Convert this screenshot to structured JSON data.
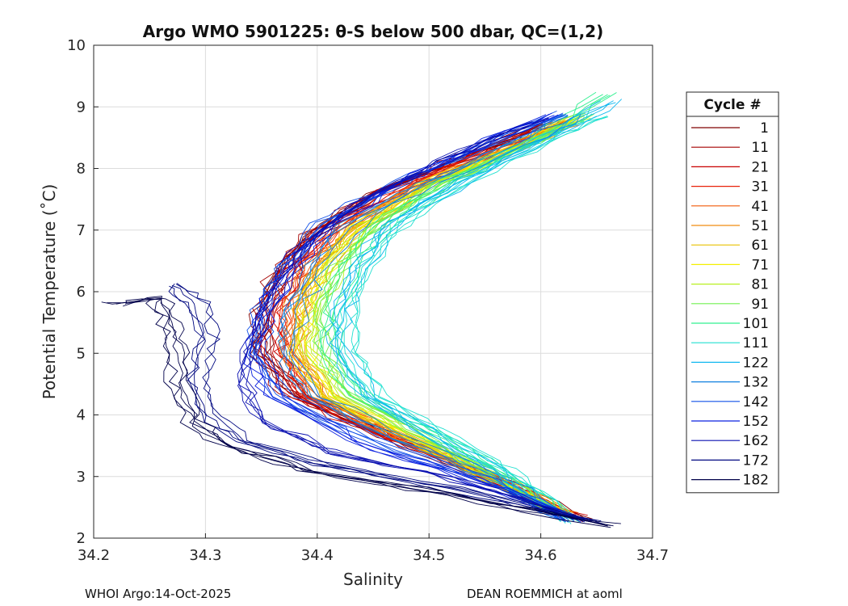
{
  "chart_data": {
    "type": "line",
    "title": "Argo WMO 5901225: θ-S below 500 dbar,  QC=(1,2)",
    "xlabel": "Salinity",
    "ylabel": "Potential Temperature (˚C)",
    "xlim": [
      34.2,
      34.7
    ],
    "ylim": [
      2,
      10
    ],
    "xticks": [
      "34.2",
      "34.3",
      "34.4",
      "34.5",
      "34.6",
      "34.7"
    ],
    "yticks": [
      "2",
      "3",
      "4",
      "5",
      "6",
      "7",
      "8",
      "9",
      "10"
    ],
    "grid": true,
    "legend": {
      "title": "Cycle #",
      "placement": "right",
      "entries": [
        {
          "label": "1",
          "color": "#800000"
        },
        {
          "label": "11",
          "color": "#a50000"
        },
        {
          "label": "21",
          "color": "#c80000"
        },
        {
          "label": "31",
          "color": "#e8220a"
        },
        {
          "label": "41",
          "color": "#f25a0a"
        },
        {
          "label": "51",
          "color": "#f08c10"
        },
        {
          "label": "61",
          "color": "#e8c000"
        },
        {
          "label": "71",
          "color": "#f5f000"
        },
        {
          "label": "81",
          "color": "#b8f020"
        },
        {
          "label": "91",
          "color": "#70f050"
        },
        {
          "label": "101",
          "color": "#30f090"
        },
        {
          "label": "111",
          "color": "#20e0d0"
        },
        {
          "label": "122",
          "color": "#10b8f0"
        },
        {
          "label": "132",
          "color": "#1080e0"
        },
        {
          "label": "142",
          "color": "#1050e8"
        },
        {
          "label": "152",
          "color": "#0a20e0"
        },
        {
          "label": "162",
          "color": "#0a10b0"
        },
        {
          "label": "172",
          "color": "#000880"
        },
        {
          "label": "182",
          "color": "#00004a"
        }
      ]
    },
    "series_profiles": [
      {
        "cycle": 1,
        "color": "#800000",
        "points": [
          [
            34.635,
            2.3
          ],
          [
            34.57,
            2.9
          ],
          [
            34.47,
            3.6
          ],
          [
            34.38,
            4.3
          ],
          [
            34.345,
            5.0
          ],
          [
            34.345,
            5.6
          ],
          [
            34.36,
            6.2
          ],
          [
            34.39,
            6.9
          ],
          [
            34.45,
            7.6
          ],
          [
            34.53,
            8.2
          ],
          [
            34.6,
            8.7
          ]
        ]
      },
      {
        "cycle": 11,
        "color": "#a50000",
        "points": [
          [
            34.63,
            2.35
          ],
          [
            34.565,
            2.9
          ],
          [
            34.46,
            3.65
          ],
          [
            34.375,
            4.35
          ],
          [
            34.35,
            5.0
          ],
          [
            34.35,
            5.7
          ],
          [
            34.365,
            6.3
          ],
          [
            34.395,
            6.95
          ],
          [
            34.46,
            7.65
          ],
          [
            34.54,
            8.25
          ],
          [
            34.61,
            8.75
          ]
        ]
      },
      {
        "cycle": 21,
        "color": "#c80000",
        "points": [
          [
            34.63,
            2.35
          ],
          [
            34.56,
            2.95
          ],
          [
            34.465,
            3.65
          ],
          [
            34.385,
            4.3
          ],
          [
            34.36,
            5.0
          ],
          [
            34.36,
            5.7
          ],
          [
            34.375,
            6.3
          ],
          [
            34.405,
            6.95
          ],
          [
            34.47,
            7.65
          ],
          [
            34.55,
            8.25
          ],
          [
            34.615,
            8.7
          ]
        ]
      },
      {
        "cycle": 31,
        "color": "#e8220a",
        "points": [
          [
            34.625,
            2.4
          ],
          [
            34.56,
            2.95
          ],
          [
            34.47,
            3.6
          ],
          [
            34.39,
            4.3
          ],
          [
            34.37,
            5.0
          ],
          [
            34.37,
            5.7
          ],
          [
            34.385,
            6.35
          ],
          [
            34.415,
            7.0
          ],
          [
            34.48,
            7.7
          ],
          [
            34.56,
            8.3
          ],
          [
            34.62,
            8.75
          ]
        ]
      },
      {
        "cycle": 41,
        "color": "#f25a0a",
        "points": [
          [
            34.625,
            2.4
          ],
          [
            34.56,
            2.95
          ],
          [
            34.475,
            3.6
          ],
          [
            34.4,
            4.3
          ],
          [
            34.375,
            5.0
          ],
          [
            34.378,
            5.7
          ],
          [
            34.392,
            6.35
          ],
          [
            34.42,
            7.0
          ],
          [
            34.485,
            7.7
          ],
          [
            34.565,
            8.3
          ],
          [
            34.625,
            8.75
          ]
        ]
      },
      {
        "cycle": 51,
        "color": "#f08c10",
        "points": [
          [
            34.62,
            2.4
          ],
          [
            34.56,
            2.95
          ],
          [
            34.48,
            3.6
          ],
          [
            34.405,
            4.3
          ],
          [
            34.38,
            5.0
          ],
          [
            34.382,
            5.7
          ],
          [
            34.398,
            6.35
          ],
          [
            34.43,
            7.0
          ],
          [
            34.49,
            7.7
          ],
          [
            34.57,
            8.3
          ],
          [
            34.625,
            8.8
          ]
        ]
      },
      {
        "cycle": 61,
        "color": "#e8c000",
        "points": [
          [
            34.62,
            2.4
          ],
          [
            34.56,
            2.95
          ],
          [
            34.485,
            3.6
          ],
          [
            34.41,
            4.3
          ],
          [
            34.385,
            5.0
          ],
          [
            34.388,
            5.7
          ],
          [
            34.405,
            6.4
          ],
          [
            34.435,
            7.0
          ],
          [
            34.495,
            7.7
          ],
          [
            34.575,
            8.3
          ],
          [
            34.63,
            8.8
          ]
        ]
      },
      {
        "cycle": 71,
        "color": "#f5f000",
        "points": [
          [
            34.62,
            2.4
          ],
          [
            34.56,
            2.95
          ],
          [
            34.49,
            3.6
          ],
          [
            34.415,
            4.3
          ],
          [
            34.39,
            5.0
          ],
          [
            34.393,
            5.7
          ],
          [
            34.41,
            6.4
          ],
          [
            34.44,
            7.05
          ],
          [
            34.5,
            7.75
          ],
          [
            34.58,
            8.35
          ],
          [
            34.63,
            8.8
          ]
        ]
      },
      {
        "cycle": 81,
        "color": "#b8f020",
        "points": [
          [
            34.62,
            2.4
          ],
          [
            34.565,
            2.95
          ],
          [
            34.495,
            3.6
          ],
          [
            34.42,
            4.3
          ],
          [
            34.395,
            5.0
          ],
          [
            34.398,
            5.7
          ],
          [
            34.415,
            6.4
          ],
          [
            34.445,
            7.05
          ],
          [
            34.505,
            7.75
          ],
          [
            34.585,
            8.35
          ],
          [
            34.635,
            8.85
          ]
        ]
      },
      {
        "cycle": 91,
        "color": "#70f050",
        "points": [
          [
            34.62,
            2.35
          ],
          [
            34.565,
            2.95
          ],
          [
            34.5,
            3.6
          ],
          [
            34.43,
            4.3
          ],
          [
            34.405,
            5.0
          ],
          [
            34.405,
            5.7
          ],
          [
            34.42,
            6.4
          ],
          [
            34.45,
            7.05
          ],
          [
            34.51,
            7.75
          ],
          [
            34.59,
            8.4
          ],
          [
            34.64,
            8.9
          ]
        ]
      },
      {
        "cycle": 101,
        "color": "#30f090",
        "points": [
          [
            34.625,
            2.3
          ],
          [
            34.575,
            2.95
          ],
          [
            34.515,
            3.6
          ],
          [
            34.44,
            4.3
          ],
          [
            34.415,
            5.0
          ],
          [
            34.415,
            5.7
          ],
          [
            34.43,
            6.4
          ],
          [
            34.46,
            7.1
          ],
          [
            34.52,
            7.8
          ],
          [
            34.595,
            8.45
          ],
          [
            34.66,
            9.2
          ]
        ]
      },
      {
        "cycle": 111,
        "color": "#20e0d0",
        "points": [
          [
            34.625,
            2.25
          ],
          [
            34.58,
            2.95
          ],
          [
            34.52,
            3.6
          ],
          [
            34.45,
            4.3
          ],
          [
            34.425,
            5.0
          ],
          [
            34.425,
            5.7
          ],
          [
            34.44,
            6.4
          ],
          [
            34.47,
            7.1
          ],
          [
            34.53,
            7.8
          ],
          [
            34.6,
            8.45
          ],
          [
            34.65,
            8.85
          ]
        ]
      },
      {
        "cycle": 122,
        "color": "#10b8f0",
        "points": [
          [
            34.62,
            2.3
          ],
          [
            34.57,
            2.95
          ],
          [
            34.51,
            3.6
          ],
          [
            34.445,
            4.3
          ],
          [
            34.42,
            5.0
          ],
          [
            34.42,
            5.7
          ],
          [
            34.435,
            6.4
          ],
          [
            34.465,
            7.1
          ],
          [
            34.53,
            7.8
          ],
          [
            34.605,
            8.5
          ],
          [
            34.665,
            9.1
          ]
        ]
      },
      {
        "cycle": 132,
        "color": "#1080e0",
        "points": [
          [
            34.62,
            2.35
          ],
          [
            34.565,
            2.95
          ],
          [
            34.48,
            3.6
          ],
          [
            34.4,
            4.3
          ],
          [
            34.375,
            5.0
          ],
          [
            34.38,
            5.7
          ],
          [
            34.4,
            6.4
          ],
          [
            34.43,
            7.05
          ],
          [
            34.5,
            7.75
          ],
          [
            34.58,
            8.4
          ],
          [
            34.63,
            8.85
          ]
        ]
      },
      {
        "cycle": 142,
        "color": "#1050e8",
        "points": [
          [
            34.625,
            2.3
          ],
          [
            34.55,
            2.95
          ],
          [
            34.45,
            3.6
          ],
          [
            34.37,
            4.3
          ],
          [
            34.345,
            5.0
          ],
          [
            34.35,
            5.7
          ],
          [
            34.37,
            6.4
          ],
          [
            34.405,
            7.1
          ],
          [
            34.47,
            7.75
          ],
          [
            34.55,
            8.35
          ],
          [
            34.62,
            8.9
          ]
        ]
      },
      {
        "cycle": 152,
        "color": "#0a20e0",
        "points": [
          [
            34.63,
            2.3
          ],
          [
            34.54,
            2.95
          ],
          [
            34.43,
            3.6
          ],
          [
            34.36,
            4.3
          ],
          [
            34.34,
            5.0
          ],
          [
            34.35,
            5.7
          ],
          [
            34.375,
            6.4
          ],
          [
            34.41,
            7.1
          ],
          [
            34.47,
            7.75
          ],
          [
            34.54,
            8.35
          ],
          [
            34.61,
            8.9
          ]
        ]
      },
      {
        "cycle": 162,
        "color": "#0a10b0",
        "points": [
          [
            34.64,
            2.3
          ],
          [
            34.52,
            2.95
          ],
          [
            34.41,
            3.4
          ],
          [
            34.35,
            3.9
          ],
          [
            34.33,
            4.5
          ],
          [
            34.34,
            5.2
          ],
          [
            34.36,
            6.0
          ],
          [
            34.39,
            6.8
          ],
          [
            34.45,
            7.6
          ],
          [
            34.53,
            8.3
          ],
          [
            34.6,
            8.8
          ]
        ]
      },
      {
        "cycle": 172,
        "color": "#000880",
        "points": [
          [
            34.65,
            2.25
          ],
          [
            34.52,
            2.8
          ],
          [
            34.4,
            3.2
          ],
          [
            34.33,
            3.6
          ],
          [
            34.3,
            4.0
          ],
          [
            34.29,
            4.6
          ],
          [
            34.3,
            5.2
          ],
          [
            34.29,
            5.8
          ],
          [
            34.27,
            6.1
          ]
        ]
      },
      {
        "cycle": 182,
        "color": "#00004a",
        "points": [
          [
            34.665,
            2.2
          ],
          [
            34.52,
            2.7
          ],
          [
            34.39,
            3.1
          ],
          [
            34.32,
            3.5
          ],
          [
            34.29,
            3.9
          ],
          [
            34.28,
            4.4
          ],
          [
            34.275,
            5.0
          ],
          [
            34.27,
            5.5
          ],
          [
            34.26,
            5.9
          ],
          [
            34.22,
            5.8
          ]
        ]
      }
    ]
  },
  "footer": {
    "left": "WHOI Argo:14-Oct-2025",
    "right": "DEAN ROEMMICH at aoml"
  }
}
